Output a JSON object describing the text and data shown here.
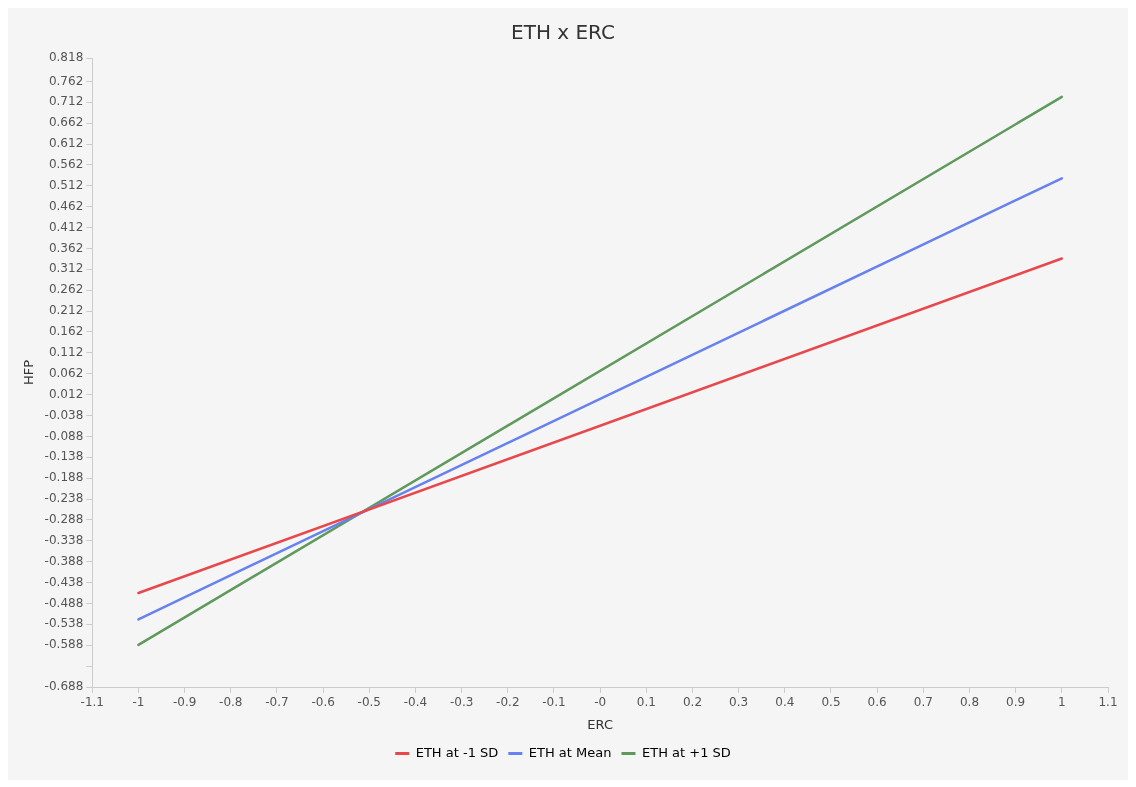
{
  "chart_data": {
    "type": "line",
    "title": "ETH x ERC",
    "xlabel": "ERC",
    "ylabel": "HFP",
    "xlim": [
      -1.1,
      1.1
    ],
    "xticks": [
      -1.1,
      -1,
      -0.9,
      -0.8,
      -0.7,
      -0.6,
      -0.5,
      -0.4,
      -0.3,
      -0.2,
      -0.1,
      {
        "value": 0,
        "label": "-0"
      },
      0.1,
      0.2,
      0.3,
      0.4,
      0.5,
      0.6,
      0.7,
      0.8,
      0.9,
      1,
      1.1
    ],
    "ylim": [
      -0.688,
      0.818
    ],
    "yticks": [
      -0.688,
      {
        "value": -0.638,
        "label": null
      },
      -0.588,
      -0.538,
      -0.488,
      -0.438,
      -0.388,
      -0.338,
      -0.288,
      -0.238,
      -0.188,
      -0.138,
      -0.088,
      -0.038,
      0.012,
      0.062,
      0.112,
      0.162,
      0.212,
      0.262,
      0.312,
      0.362,
      0.412,
      0.462,
      0.512,
      0.562,
      0.612,
      0.662,
      0.712,
      0.762,
      0.818
    ],
    "x": [
      -1,
      1
    ],
    "series": [
      {
        "name": "ETH at -1 SD",
        "color": "#e8474b",
        "values": [
          -0.463,
          0.338
        ]
      },
      {
        "name": "ETH at Mean",
        "color": "#6782ee",
        "values": [
          -0.526,
          0.53
        ]
      },
      {
        "name": "ETH at +1 SD",
        "color": "#5f9a5c",
        "values": [
          -0.587,
          0.725
        ]
      }
    ],
    "grid": false,
    "legend": "bottom",
    "marker": "none",
    "line_style": "solid"
  }
}
